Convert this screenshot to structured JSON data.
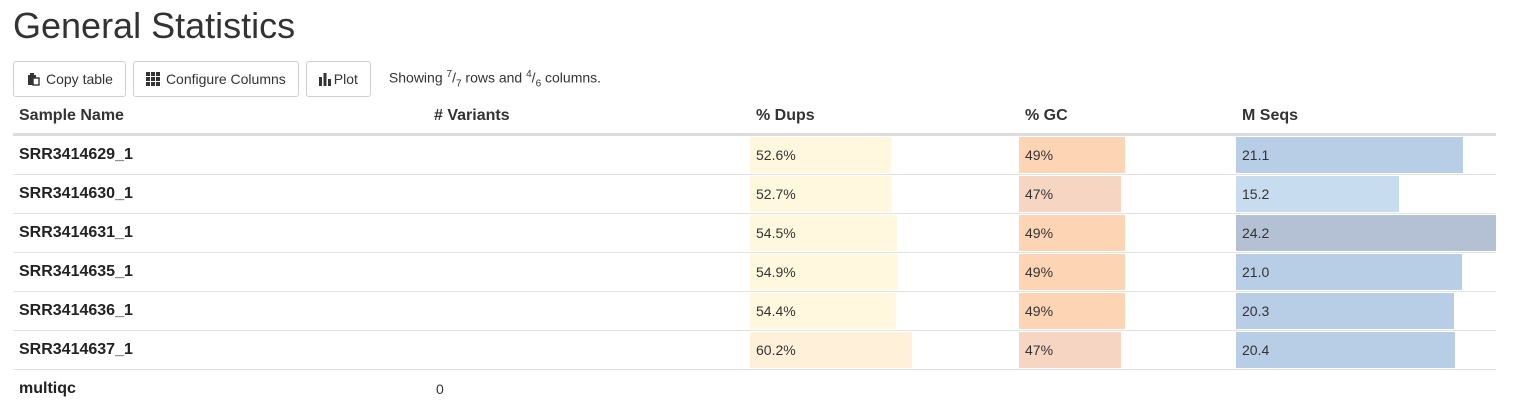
{
  "title": "General Statistics",
  "toolbar": {
    "copy_label": "Copy table",
    "configure_label": "Configure Columns",
    "plot_label": "Plot",
    "showing_prefix": "Showing ",
    "rows_shown": "7",
    "rows_total": "7",
    "rows_word": " rows and ",
    "cols_shown": "4",
    "cols_total": "6",
    "cols_word": " columns."
  },
  "table": {
    "headers": [
      "Sample Name",
      "# Variants",
      "% Dups",
      "% GC",
      "M Seqs"
    ],
    "rows": [
      {
        "name": "SRR3414629_1",
        "variants": "",
        "dups": "52.6%",
        "dups_pct": 52.6,
        "gc": "49%",
        "gc_pct": 49,
        "mseqs": "21.1",
        "mseqs_val": 21.1
      },
      {
        "name": "SRR3414630_1",
        "variants": "",
        "dups": "52.7%",
        "dups_pct": 52.7,
        "gc": "47%",
        "gc_pct": 47,
        "mseqs": "15.2",
        "mseqs_val": 15.2
      },
      {
        "name": "SRR3414631_1",
        "variants": "",
        "dups": "54.5%",
        "dups_pct": 54.5,
        "gc": "49%",
        "gc_pct": 49,
        "mseqs": "24.2",
        "mseqs_val": 24.2
      },
      {
        "name": "SRR3414635_1",
        "variants": "",
        "dups": "54.9%",
        "dups_pct": 54.9,
        "gc": "49%",
        "gc_pct": 49,
        "mseqs": "21.0",
        "mseqs_val": 21.0
      },
      {
        "name": "SRR3414636_1",
        "variants": "",
        "dups": "54.4%",
        "dups_pct": 54.4,
        "gc": "49%",
        "gc_pct": 49,
        "mseqs": "20.3",
        "mseqs_val": 20.3
      },
      {
        "name": "SRR3414637_1",
        "variants": "",
        "dups": "60.2%",
        "dups_pct": 60.2,
        "gc": "47%",
        "gc_pct": 47,
        "mseqs": "20.4",
        "mseqs_val": 20.4
      },
      {
        "name": "multiqc",
        "variants": "0",
        "dups": "",
        "gc": "",
        "mseqs": ""
      }
    ],
    "colors": {
      "dups": [
        "#fff8df",
        "#fff8df",
        "#fff8df",
        "#fff8df",
        "#fff8df",
        "#fff0d9"
      ],
      "gc": [
        "#fdd4b4",
        "#f6d5c2",
        "#fdd4b4",
        "#fdd4b4",
        "#fdd4b4",
        "#f6d5c2"
      ],
      "mseqs": [
        "#b8cde6",
        "#c7ddef",
        "#b4c0d4",
        "#b8cde6",
        "#b8cde6",
        "#b8cde6"
      ]
    }
  }
}
